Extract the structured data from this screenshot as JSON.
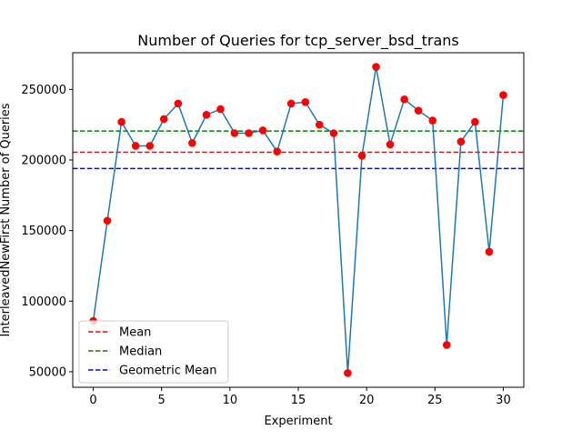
{
  "chart_data": {
    "type": "line",
    "title": "Number of Queries for tcp_server_bsd_trans",
    "xlabel": "Experiment",
    "ylabel": "InterleavedNewFirst Number of Queries",
    "xlim": [
      -1.5,
      31.5
    ],
    "ylim": [
      39000,
      276000
    ],
    "xticks": [
      0,
      5,
      10,
      15,
      20,
      25,
      30
    ],
    "yticks": [
      50000,
      100000,
      150000,
      200000,
      250000
    ],
    "ytick_labels": [
      "50000",
      "100000",
      "150000",
      "200000",
      "250000"
    ],
    "grid": false,
    "legend_position": "lower-left",
    "x": [
      0,
      1.03,
      2.07,
      3.1,
      4.14,
      5.17,
      6.21,
      7.24,
      8.28,
      9.31,
      10.34,
      11.38,
      12.41,
      13.45,
      14.48,
      15.52,
      16.55,
      17.59,
      18.62,
      19.66,
      20.69,
      21.72,
      22.76,
      23.79,
      24.83,
      25.86,
      26.9,
      27.93,
      28.97,
      30
    ],
    "series": [
      {
        "name": "",
        "color": "#1f77b4",
        "marker_color": "#ff0000",
        "values": [
          86000,
          157000,
          227000,
          210000,
          210000,
          229000,
          240000,
          212000,
          232000,
          236000,
          219000,
          219000,
          221000,
          206000,
          240000,
          241000,
          225000,
          219000,
          49000,
          203000,
          266000,
          211000,
          243000,
          235000,
          228000,
          69000,
          213000,
          227000,
          135000,
          246000
        ]
      }
    ],
    "hlines": [
      {
        "name": "Mean",
        "value": 205500,
        "color": "#ff0000"
      },
      {
        "name": "Median",
        "value": 220500,
        "color": "#008000"
      },
      {
        "name": "Geometric Mean",
        "value": 194000,
        "color": "#0000ff"
      }
    ]
  }
}
